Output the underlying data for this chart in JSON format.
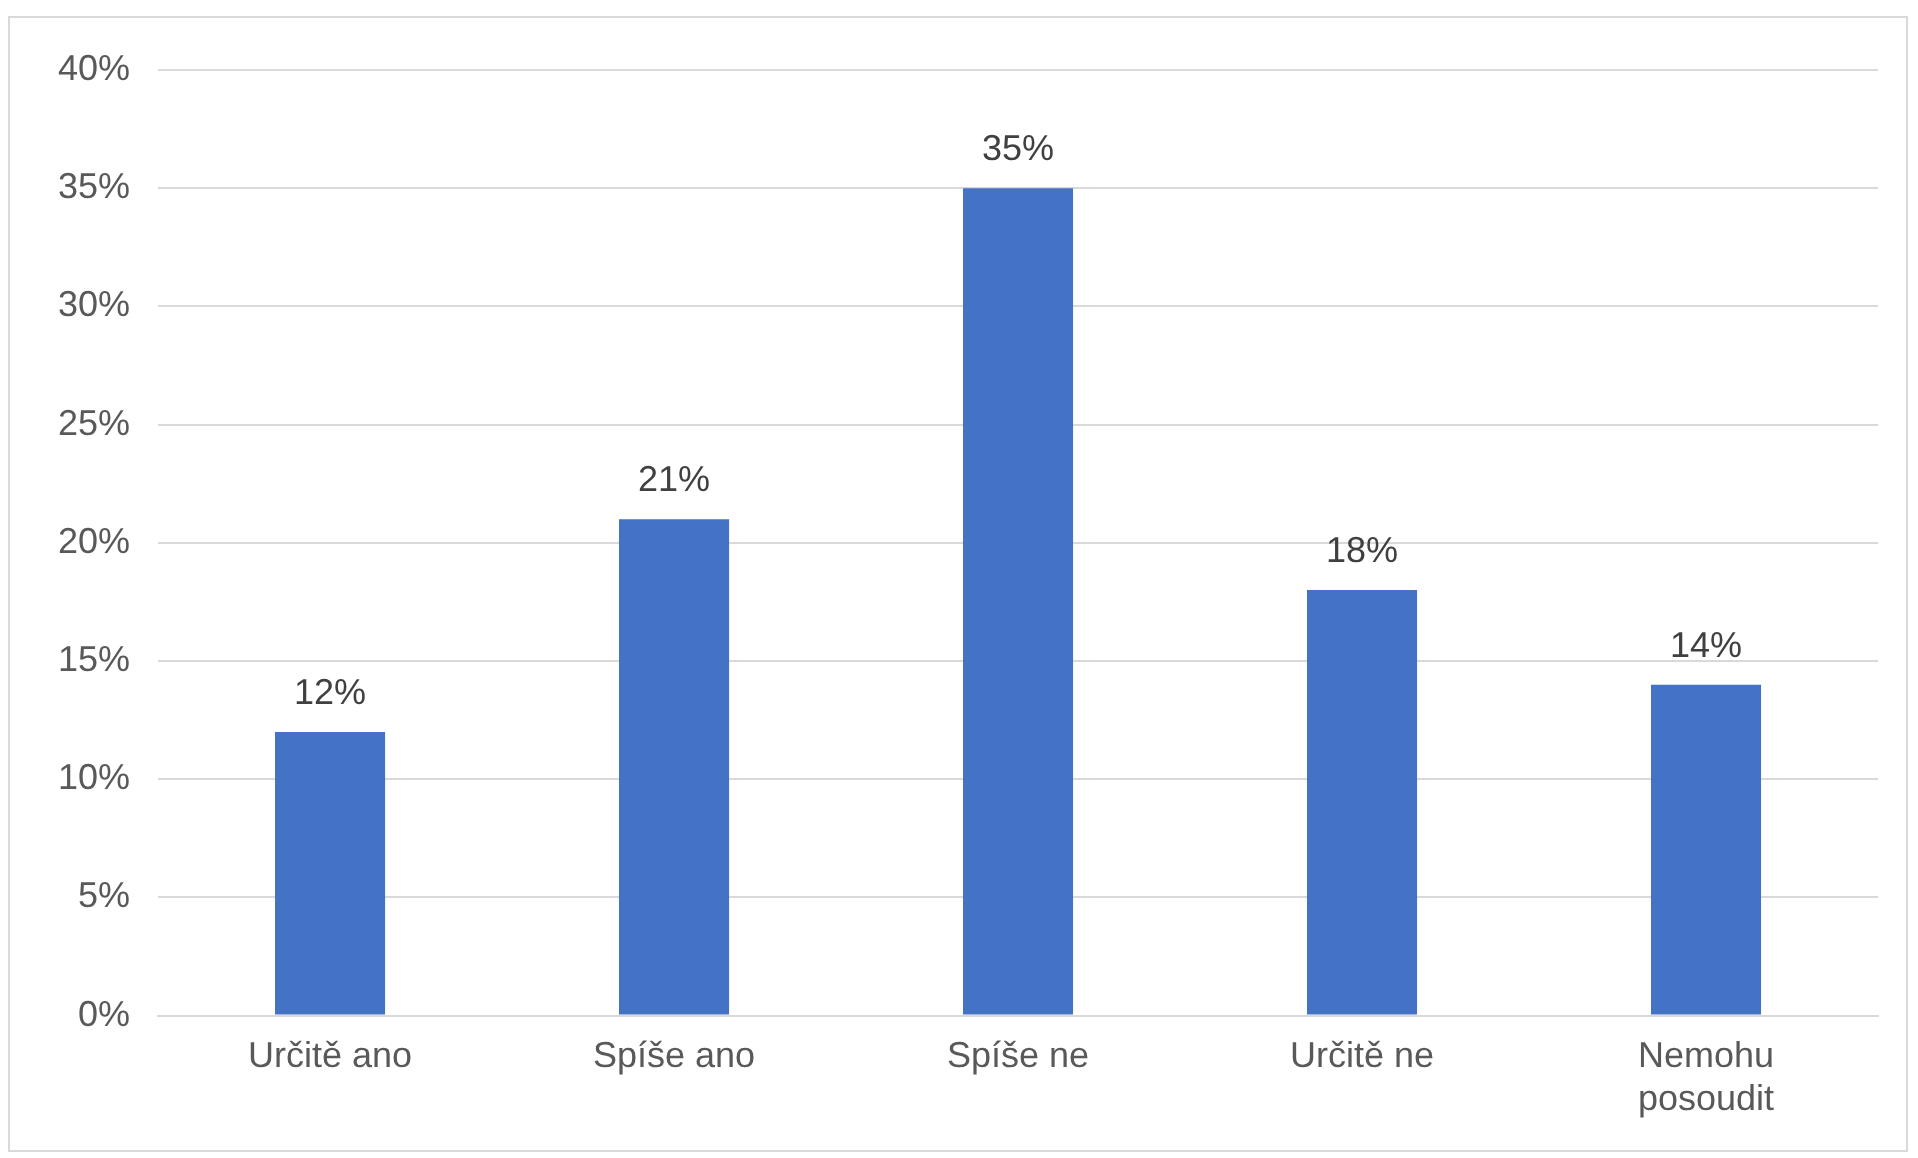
{
  "chart_data": {
    "type": "bar",
    "categories": [
      "Určitě ano",
      "Spíše ano",
      "Spíše ne",
      "Určitě ne",
      "Nemohu posoudit"
    ],
    "values": [
      12,
      21,
      35,
      18,
      14
    ],
    "value_labels": [
      "12%",
      "21%",
      "35%",
      "18%",
      "14%"
    ],
    "color": "#4472c4",
    "ylim": [
      0,
      40
    ],
    "yticks": [
      {
        "value": 0,
        "label": "0%"
      },
      {
        "value": 5,
        "label": "5%"
      },
      {
        "value": 10,
        "label": "10%"
      },
      {
        "value": 15,
        "label": "15%"
      },
      {
        "value": 20,
        "label": "20%"
      },
      {
        "value": 25,
        "label": "25%"
      },
      {
        "value": 30,
        "label": "30%"
      },
      {
        "value": 35,
        "label": "35%"
      },
      {
        "value": 40,
        "label": "40%"
      }
    ],
    "grid": "y",
    "legend": false
  }
}
